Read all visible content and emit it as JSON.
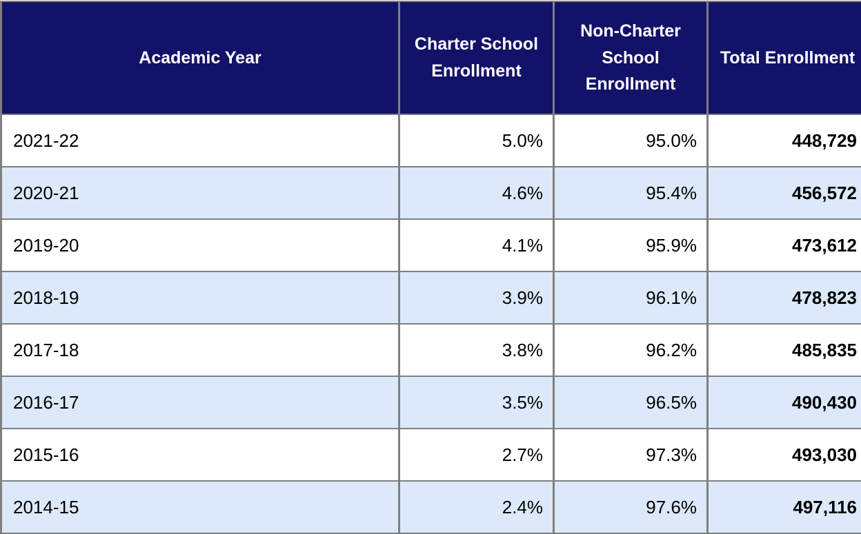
{
  "colors": {
    "header_background": "#131269",
    "header_text": "#ffffff",
    "stripe_row_background": "#dbe9fa",
    "grid_border": "#7f7f7f",
    "body_text": "#000000"
  },
  "chart_data": {
    "type": "table",
    "title": "",
    "columns": [
      "Academic Year",
      "Charter School Enrollment",
      "Non-Charter School Enrollment",
      "Total Enrollment"
    ],
    "rows": [
      [
        "2021-22",
        "5.0%",
        "95.0%",
        "448,729"
      ],
      [
        "2020-21",
        "4.6%",
        "95.4%",
        "456,572"
      ],
      [
        "2019-20",
        "4.1%",
        "95.9%",
        "473,612"
      ],
      [
        "2018-19",
        "3.9%",
        "96.1%",
        "478,823"
      ],
      [
        "2017-18",
        "3.8%",
        "96.2%",
        "485,835"
      ],
      [
        "2016-17",
        "3.5%",
        "96.5%",
        "490,430"
      ],
      [
        "2015-16",
        "2.7%",
        "97.3%",
        "493,030"
      ],
      [
        "2014-15",
        "2.4%",
        "97.6%",
        "497,116"
      ]
    ],
    "layout_hints": {
      "striped_rows": true,
      "stripe_pattern": "even rows light blue, odd rows white",
      "total_column_bold": true,
      "year_column_align": "left",
      "numeric_columns_align": "right",
      "header_align": "center"
    }
  }
}
